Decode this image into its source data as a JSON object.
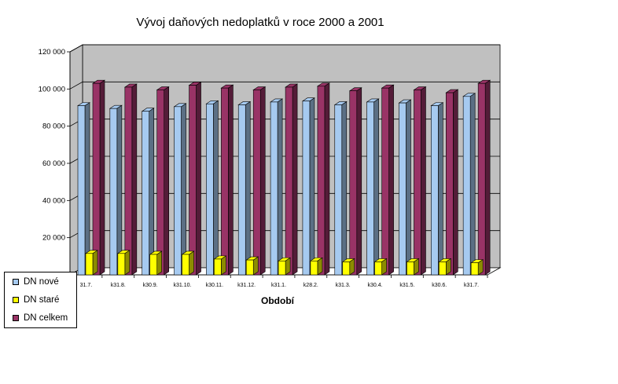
{
  "chart_data": {
    "type": "bar",
    "title": "Vývoj daňových nedoplatků v roce 2000  a 2001",
    "xlabel": "Období",
    "ylabel": "",
    "ylim": [
      0,
      120000
    ],
    "yticks": [
      "20 000",
      "40 000",
      "60 000",
      "80 000",
      "100 000",
      "120 000"
    ],
    "categories": [
      "31.7.",
      "k31.8.",
      "k30.9.",
      "k31.10.",
      "k30.11.",
      "k31.12.",
      "k31.1.",
      "k28.2.",
      "k31.3.",
      "k30.4.",
      "k31.5.",
      "k30.6.",
      "k31.7."
    ],
    "series": [
      {
        "name": "DN nové",
        "color": "#a6caf0",
        "values": [
          91000,
          89500,
          88000,
          90500,
          92000,
          91500,
          93000,
          93500,
          91500,
          93000,
          92500,
          91000,
          96000
        ]
      },
      {
        "name": "DN staré",
        "color": "#ffff00",
        "values": [
          11500,
          11500,
          11000,
          11000,
          8500,
          8000,
          7500,
          7500,
          7000,
          7000,
          7000,
          7000,
          6500
        ]
      },
      {
        "name": "DN celkem",
        "color": "#993366",
        "values": [
          103000,
          101000,
          99500,
          102000,
          100500,
          99500,
          101000,
          101500,
          99000,
          100500,
          99500,
          98000,
          103000
        ]
      }
    ],
    "grid": true,
    "legend": "bottom-left"
  }
}
